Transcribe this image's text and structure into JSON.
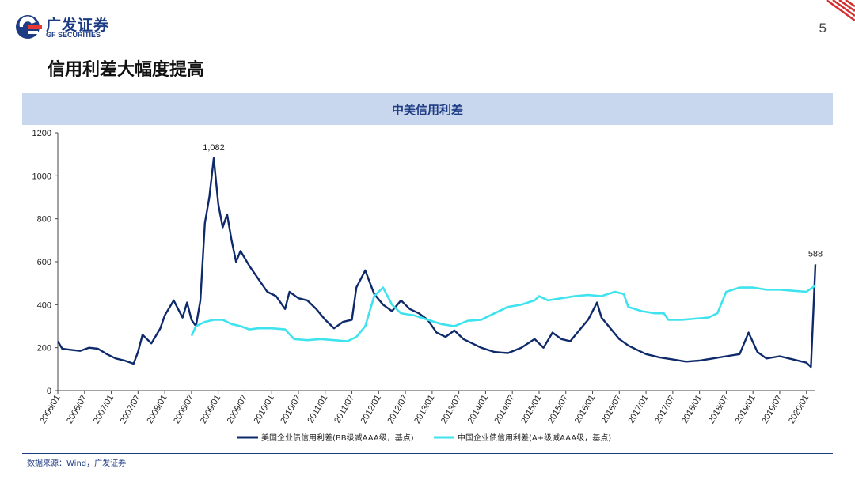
{
  "header": {
    "logo_cn": "广发证券",
    "logo_en": "GF SECURITIES",
    "page_number": "5"
  },
  "slide": {
    "title": "信用利差大幅度提高",
    "source": "数据来源：Wind，广发证券"
  },
  "colors": {
    "brand": "#1d3c84",
    "us_series": "#0e2a6b",
    "cn_series": "#3ee3ee",
    "band": "#c9d7ee",
    "accent_red": "#d32f2f"
  },
  "chart_data": {
    "type": "line",
    "title": "中美信用利差",
    "ylim": [
      0,
      1200
    ],
    "yticks": [
      "0",
      "200",
      "400",
      "600",
      "800",
      "1000",
      "1200"
    ],
    "xticks": [
      "2006/01",
      "2006/07",
      "2007/01",
      "2007/07",
      "2008/01",
      "2008/07",
      "2009/01",
      "2009/07",
      "2010/01",
      "2010/07",
      "2011/01",
      "2011/07",
      "2012/01",
      "2012/07",
      "2013/01",
      "2013/07",
      "2014/01",
      "2014/07",
      "2015/01",
      "2015/07",
      "2016/01",
      "2016/07",
      "2017/01",
      "2017/07",
      "2018/01",
      "2018/07",
      "2019/01",
      "2019/07",
      "2020/01"
    ],
    "legend_placement": "bottom",
    "grid": false,
    "annotations": [
      {
        "text": "1,082",
        "x": "2008/12",
        "y": 1082
      },
      {
        "text": "588",
        "x": "2020/03",
        "y": 588
      }
    ],
    "series": [
      {
        "name": "美国企业债信用利差(BB级减AAA级，基点)",
        "color": "#0e2a6b",
        "points": [
          [
            "2006/01",
            230
          ],
          [
            "2006/02",
            195
          ],
          [
            "2006/04",
            190
          ],
          [
            "2006/06",
            185
          ],
          [
            "2006/08",
            200
          ],
          [
            "2006/10",
            195
          ],
          [
            "2006/12",
            170
          ],
          [
            "2007/02",
            150
          ],
          [
            "2007/04",
            140
          ],
          [
            "2007/06",
            125
          ],
          [
            "2007/07",
            180
          ],
          [
            "2007/08",
            260
          ],
          [
            "2007/10",
            220
          ],
          [
            "2007/12",
            290
          ],
          [
            "2008/01",
            350
          ],
          [
            "2008/03",
            420
          ],
          [
            "2008/04",
            380
          ],
          [
            "2008/05",
            340
          ],
          [
            "2008/06",
            410
          ],
          [
            "2008/07",
            330
          ],
          [
            "2008/08",
            300
          ],
          [
            "2008/09",
            420
          ],
          [
            "2008/10",
            780
          ],
          [
            "2008/11",
            900
          ],
          [
            "2008/12",
            1082
          ],
          [
            "2009/01",
            870
          ],
          [
            "2009/02",
            760
          ],
          [
            "2009/03",
            820
          ],
          [
            "2009/04",
            700
          ],
          [
            "2009/05",
            600
          ],
          [
            "2009/06",
            650
          ],
          [
            "2009/08",
            580
          ],
          [
            "2009/10",
            520
          ],
          [
            "2009/12",
            460
          ],
          [
            "2010/02",
            440
          ],
          [
            "2010/04",
            380
          ],
          [
            "2010/05",
            460
          ],
          [
            "2010/07",
            430
          ],
          [
            "2010/09",
            420
          ],
          [
            "2010/11",
            380
          ],
          [
            "2011/01",
            330
          ],
          [
            "2011/03",
            290
          ],
          [
            "2011/05",
            320
          ],
          [
            "2011/07",
            330
          ],
          [
            "2011/08",
            480
          ],
          [
            "2011/10",
            560
          ],
          [
            "2011/12",
            450
          ],
          [
            "2012/02",
            400
          ],
          [
            "2012/04",
            370
          ],
          [
            "2012/06",
            420
          ],
          [
            "2012/08",
            380
          ],
          [
            "2012/10",
            360
          ],
          [
            "2012/12",
            330
          ],
          [
            "2013/02",
            270
          ],
          [
            "2013/04",
            250
          ],
          [
            "2013/06",
            280
          ],
          [
            "2013/08",
            240
          ],
          [
            "2013/10",
            220
          ],
          [
            "2013/12",
            200
          ],
          [
            "2014/03",
            180
          ],
          [
            "2014/06",
            175
          ],
          [
            "2014/09",
            200
          ],
          [
            "2014/12",
            240
          ],
          [
            "2015/02",
            200
          ],
          [
            "2015/04",
            270
          ],
          [
            "2015/06",
            240
          ],
          [
            "2015/08",
            230
          ],
          [
            "2015/10",
            280
          ],
          [
            "2015/12",
            330
          ],
          [
            "2016/02",
            410
          ],
          [
            "2016/03",
            340
          ],
          [
            "2016/05",
            290
          ],
          [
            "2016/07",
            240
          ],
          [
            "2016/09",
            210
          ],
          [
            "2016/11",
            190
          ],
          [
            "2017/01",
            170
          ],
          [
            "2017/04",
            155
          ],
          [
            "2017/07",
            145
          ],
          [
            "2017/10",
            135
          ],
          [
            "2018/01",
            140
          ],
          [
            "2018/04",
            150
          ],
          [
            "2018/07",
            160
          ],
          [
            "2018/10",
            170
          ],
          [
            "2018/12",
            270
          ],
          [
            "2019/02",
            180
          ],
          [
            "2019/04",
            150
          ],
          [
            "2019/07",
            160
          ],
          [
            "2019/10",
            145
          ],
          [
            "2020/01",
            130
          ],
          [
            "2020/02",
            110
          ],
          [
            "2020/03",
            588
          ]
        ]
      },
      {
        "name": "中国企业债信用利差(A+级减AAA级，基点)",
        "color": "#3ee3ee",
        "points": [
          [
            "2008/07",
            255
          ],
          [
            "2008/08",
            300
          ],
          [
            "2008/10",
            320
          ],
          [
            "2008/12",
            330
          ],
          [
            "2009/02",
            330
          ],
          [
            "2009/04",
            310
          ],
          [
            "2009/06",
            300
          ],
          [
            "2009/08",
            285
          ],
          [
            "2009/10",
            290
          ],
          [
            "2010/01",
            290
          ],
          [
            "2010/04",
            285
          ],
          [
            "2010/06",
            240
          ],
          [
            "2010/09",
            235
          ],
          [
            "2010/12",
            240
          ],
          [
            "2011/03",
            235
          ],
          [
            "2011/06",
            230
          ],
          [
            "2011/08",
            250
          ],
          [
            "2011/10",
            300
          ],
          [
            "2011/12",
            440
          ],
          [
            "2012/02",
            480
          ],
          [
            "2012/04",
            400
          ],
          [
            "2012/06",
            360
          ],
          [
            "2012/09",
            350
          ],
          [
            "2012/12",
            330
          ],
          [
            "2013/03",
            310
          ],
          [
            "2013/06",
            300
          ],
          [
            "2013/09",
            325
          ],
          [
            "2013/12",
            330
          ],
          [
            "2014/03",
            360
          ],
          [
            "2014/06",
            390
          ],
          [
            "2014/09",
            400
          ],
          [
            "2014/12",
            420
          ],
          [
            "2015/01",
            440
          ],
          [
            "2015/03",
            420
          ],
          [
            "2015/06",
            430
          ],
          [
            "2015/09",
            440
          ],
          [
            "2015/12",
            445
          ],
          [
            "2016/03",
            440
          ],
          [
            "2016/06",
            460
          ],
          [
            "2016/08",
            450
          ],
          [
            "2016/09",
            390
          ],
          [
            "2016/12",
            370
          ],
          [
            "2017/03",
            360
          ],
          [
            "2017/05",
            360
          ],
          [
            "2017/06",
            330
          ],
          [
            "2017/09",
            330
          ],
          [
            "2017/12",
            335
          ],
          [
            "2018/03",
            340
          ],
          [
            "2018/05",
            360
          ],
          [
            "2018/07",
            460
          ],
          [
            "2018/10",
            480
          ],
          [
            "2019/01",
            480
          ],
          [
            "2019/04",
            470
          ],
          [
            "2019/07",
            470
          ],
          [
            "2019/10",
            465
          ],
          [
            "2020/01",
            460
          ],
          [
            "2020/03",
            490
          ]
        ]
      }
    ]
  }
}
